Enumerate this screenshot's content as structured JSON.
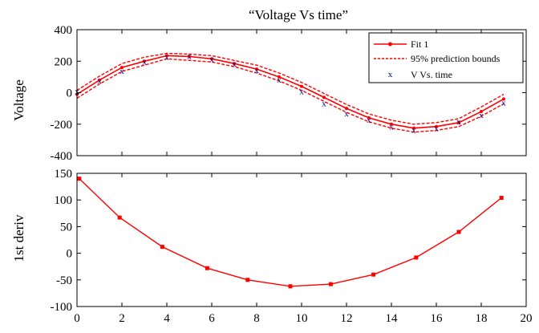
{
  "chart_data": [
    {
      "type": "line",
      "title": "“Voltage Vs time”",
      "xlabel": "",
      "ylabel": "Voltage",
      "xlim": [
        0,
        20
      ],
      "ylim": [
        -400,
        400
      ],
      "yticks": [
        "-400",
        "-200",
        "0",
        "200",
        "400"
      ],
      "grid": false,
      "legend_position": "top-right",
      "legend": [
        "Fit 1",
        "95% prediction bounds",
        "V Vs. time"
      ],
      "series": [
        {
          "name": "Fit 1",
          "style": "solid-line-dot-markers",
          "color": "#ff0000",
          "x": [
            0,
            1,
            2,
            3,
            4,
            5,
            6,
            7,
            8,
            9,
            10,
            11,
            12,
            13,
            14,
            15,
            16,
            17,
            18,
            19
          ],
          "y": [
            -10,
            80,
            160,
            200,
            235,
            230,
            215,
            185,
            150,
            100,
            40,
            -30,
            -100,
            -160,
            -200,
            -225,
            -215,
            -190,
            -120,
            -40
          ]
        },
        {
          "name": "95% prediction bounds",
          "style": "dashed",
          "color": "#ff0000",
          "x": [
            0,
            1,
            2,
            3,
            4,
            5,
            6,
            7,
            8,
            9,
            10,
            11,
            12,
            13,
            14,
            15,
            16,
            17,
            18,
            19
          ],
          "upper": [
            15,
            105,
            185,
            225,
            250,
            245,
            235,
            205,
            175,
            125,
            65,
            -5,
            -75,
            -135,
            -175,
            -200,
            -190,
            -165,
            -90,
            -10
          ],
          "lower": [
            -35,
            55,
            135,
            175,
            215,
            205,
            195,
            165,
            125,
            75,
            15,
            -55,
            -125,
            -185,
            -225,
            -250,
            -240,
            -215,
            -150,
            -70
          ]
        },
        {
          "name": "V Vs. time",
          "style": "x-markers",
          "color": "#000080",
          "x": [
            0,
            1,
            2,
            3,
            4,
            5,
            6,
            7,
            8,
            9,
            10,
            11,
            12,
            13,
            14,
            15,
            16,
            17,
            18,
            19
          ],
          "y": [
            10,
            80,
            140,
            200,
            230,
            235,
            215,
            185,
            145,
            85,
            10,
            -65,
            -130,
            -170,
            -215,
            -235,
            -225,
            -180,
            -140,
            -60
          ]
        }
      ]
    },
    {
      "type": "line",
      "title": "",
      "xlabel": "",
      "ylabel": "1st deriv",
      "xlim": [
        0,
        20
      ],
      "ylim": [
        -100,
        150
      ],
      "xticks": [
        "0",
        "2",
        "4",
        "6",
        "8",
        "10",
        "12",
        "14",
        "16",
        "18",
        "20"
      ],
      "yticks": [
        "-100",
        "-50",
        "0",
        "50",
        "100",
        "150"
      ],
      "grid": false,
      "series": [
        {
          "name": "",
          "color": "#ff0000",
          "x": [
            0.1,
            1.9,
            3.8,
            5.8,
            7.6,
            9.5,
            11.3,
            13.2,
            15.1,
            17.0,
            18.9
          ],
          "y": [
            140,
            67,
            12,
            -28,
            -50,
            -62,
            -58,
            -40,
            -8,
            40,
            104
          ]
        }
      ]
    }
  ],
  "colors": {
    "fit": "#ff0000",
    "data_markers": "#000080",
    "axes": "#000000"
  },
  "legend_sample_label": "x"
}
